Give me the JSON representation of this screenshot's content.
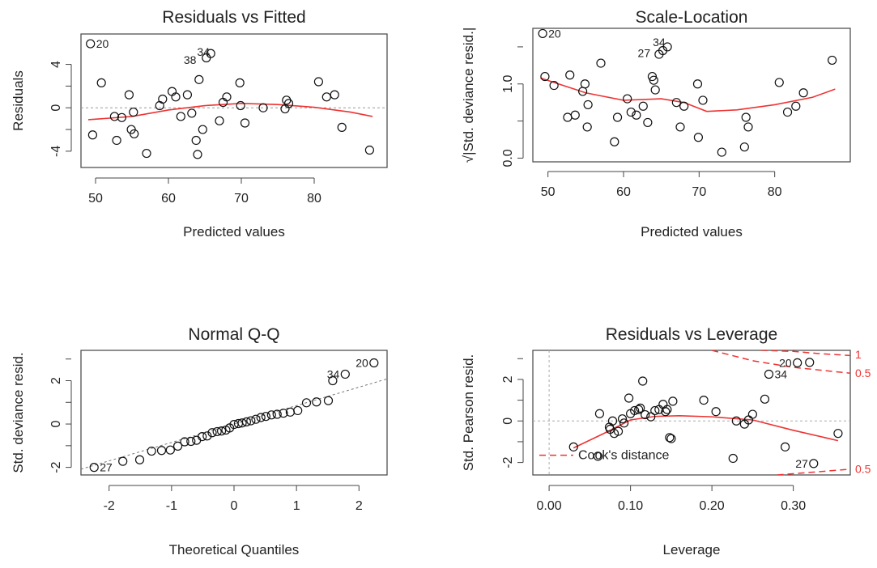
{
  "chart_data": [
    {
      "id": "rvf",
      "type": "scatter",
      "title": "Residuals vs Fitted",
      "xlabel": "Predicted values",
      "ylabel": "Residuals",
      "xlim": [
        48,
        90
      ],
      "ylim": [
        -5.5,
        6.8
      ],
      "xticks": [
        50,
        60,
        70,
        80
      ],
      "yticks": [
        -4,
        0,
        4
      ],
      "points": [
        [
          49.3,
          5.9
        ],
        [
          49.6,
          -2.5
        ],
        [
          50.8,
          2.3
        ],
        [
          52.6,
          -0.8
        ],
        [
          52.9,
          -3.0
        ],
        [
          53.6,
          -0.9
        ],
        [
          54.6,
          1.2
        ],
        [
          54.9,
          -2.0
        ],
        [
          55.2,
          -0.4
        ],
        [
          55.3,
          -2.4
        ],
        [
          57.0,
          -4.2
        ],
        [
          58.8,
          0.2
        ],
        [
          59.2,
          0.8
        ],
        [
          60.5,
          1.5
        ],
        [
          61.0,
          1.0
        ],
        [
          61.7,
          -0.8
        ],
        [
          62.6,
          1.2
        ],
        [
          63.2,
          -0.5
        ],
        [
          63.8,
          -3.0
        ],
        [
          64.0,
          -4.3
        ],
        [
          64.2,
          2.6
        ],
        [
          64.7,
          -2.0
        ],
        [
          65.2,
          4.6
        ],
        [
          65.8,
          5.0
        ],
        [
          67.0,
          -1.2
        ],
        [
          67.5,
          0.5
        ],
        [
          68.0,
          1.0
        ],
        [
          69.8,
          2.3
        ],
        [
          69.9,
          0.2
        ],
        [
          70.5,
          -1.4
        ],
        [
          73.0,
          0.0
        ],
        [
          76.0,
          -0.1
        ],
        [
          76.2,
          0.7
        ],
        [
          76.5,
          0.4
        ],
        [
          80.6,
          2.4
        ],
        [
          81.7,
          1.0
        ],
        [
          82.8,
          1.2
        ],
        [
          83.8,
          -1.8
        ],
        [
          87.6,
          -3.9
        ]
      ],
      "labeled": [
        {
          "x": 49.3,
          "y": 5.9,
          "text": "20",
          "side": "right"
        },
        {
          "x": 64.8,
          "y": 4.7,
          "text": "34",
          "side": "above"
        },
        {
          "x": 64.6,
          "y": 4.4,
          "text": "38",
          "side": "left"
        }
      ],
      "ref_line": {
        "y": 0
      },
      "smoother": [
        [
          49,
          -1.1
        ],
        [
          55,
          -0.8
        ],
        [
          60,
          -0.2
        ],
        [
          65,
          0.2
        ],
        [
          70,
          0.4
        ],
        [
          75,
          0.3
        ],
        [
          80,
          0.05
        ],
        [
          85,
          -0.4
        ],
        [
          88,
          -0.8
        ]
      ]
    },
    {
      "id": "sl",
      "type": "scatter",
      "title": "Scale-Location",
      "xlabel": "Predicted values",
      "ylabel": "√|Std. deviance resid.|",
      "xlim": [
        48,
        90
      ],
      "ylim": [
        -0.05,
        1.75
      ],
      "xticks": [
        50,
        60,
        70,
        80
      ],
      "yticks": [
        "0.0",
        "1.0"
      ],
      "points": [
        [
          49.3,
          1.68
        ],
        [
          49.6,
          1.1
        ],
        [
          50.8,
          0.98
        ],
        [
          52.9,
          1.12
        ],
        [
          53.6,
          0.58
        ],
        [
          52.6,
          0.55
        ],
        [
          54.6,
          0.9
        ],
        [
          54.9,
          1.0
        ],
        [
          55.2,
          0.42
        ],
        [
          55.3,
          0.72
        ],
        [
          57.0,
          1.28
        ],
        [
          58.8,
          0.22
        ],
        [
          59.2,
          0.55
        ],
        [
          60.5,
          0.8
        ],
        [
          61.0,
          0.62
        ],
        [
          61.7,
          0.58
        ],
        [
          62.6,
          0.7
        ],
        [
          63.2,
          0.48
        ],
        [
          63.8,
          1.1
        ],
        [
          64.0,
          1.05
        ],
        [
          64.2,
          0.92
        ],
        [
          64.7,
          1.4
        ],
        [
          65.2,
          1.45
        ],
        [
          65.8,
          1.5
        ],
        [
          67.0,
          0.75
        ],
        [
          67.5,
          0.42
        ],
        [
          68.0,
          0.7
        ],
        [
          69.8,
          1.0
        ],
        [
          69.9,
          0.28
        ],
        [
          70.5,
          0.78
        ],
        [
          73.0,
          0.08
        ],
        [
          76.0,
          0.15
        ],
        [
          76.2,
          0.55
        ],
        [
          76.5,
          0.42
        ],
        [
          80.6,
          1.02
        ],
        [
          81.7,
          0.62
        ],
        [
          82.8,
          0.7
        ],
        [
          83.8,
          0.88
        ],
        [
          87.6,
          1.32
        ]
      ],
      "labeled": [
        {
          "x": 49.3,
          "y": 1.68,
          "text": "20",
          "side": "right"
        },
        {
          "x": 64.7,
          "y": 1.5,
          "text": "34",
          "side": "above"
        },
        {
          "x": 64.3,
          "y": 1.42,
          "text": "27",
          "side": "left"
        }
      ],
      "smoother": [
        [
          49,
          1.08
        ],
        [
          55,
          0.88
        ],
        [
          60,
          0.78
        ],
        [
          65,
          0.8
        ],
        [
          68,
          0.75
        ],
        [
          71,
          0.63
        ],
        [
          75,
          0.65
        ],
        [
          80,
          0.72
        ],
        [
          85,
          0.82
        ],
        [
          88,
          0.93
        ]
      ]
    },
    {
      "id": "qq",
      "type": "scatter",
      "title": "Normal Q-Q",
      "xlabel": "Theoretical Quantiles",
      "ylabel": "Std. deviance resid.",
      "xlim": [
        -2.45,
        2.45
      ],
      "ylim": [
        -2.35,
        3.4
      ],
      "xticks": [
        -2,
        -1,
        0,
        1,
        2
      ],
      "yticks": [
        -2,
        0,
        2
      ],
      "points": [
        [
          -2.24,
          -2.0
        ],
        [
          -1.78,
          -1.72
        ],
        [
          -1.51,
          -1.65
        ],
        [
          -1.32,
          -1.25
        ],
        [
          -1.16,
          -1.22
        ],
        [
          -1.02,
          -1.2
        ],
        [
          -0.9,
          -1.02
        ],
        [
          -0.79,
          -0.82
        ],
        [
          -0.69,
          -0.8
        ],
        [
          -0.6,
          -0.75
        ],
        [
          -0.51,
          -0.58
        ],
        [
          -0.43,
          -0.55
        ],
        [
          -0.35,
          -0.4
        ],
        [
          -0.27,
          -0.35
        ],
        [
          -0.2,
          -0.32
        ],
        [
          -0.13,
          -0.28
        ],
        [
          -0.07,
          -0.18
        ],
        [
          0.0,
          -0.02
        ],
        [
          0.07,
          0.02
        ],
        [
          0.13,
          0.05
        ],
        [
          0.2,
          0.1
        ],
        [
          0.27,
          0.15
        ],
        [
          0.35,
          0.22
        ],
        [
          0.43,
          0.3
        ],
        [
          0.51,
          0.35
        ],
        [
          0.6,
          0.42
        ],
        [
          0.69,
          0.45
        ],
        [
          0.79,
          0.5
        ],
        [
          0.9,
          0.55
        ],
        [
          1.02,
          0.62
        ],
        [
          1.16,
          0.98
        ],
        [
          1.32,
          1.02
        ],
        [
          1.51,
          1.08
        ],
        [
          1.58,
          2.0
        ],
        [
          1.78,
          2.3
        ],
        [
          2.24,
          2.82
        ]
      ],
      "labeled": [
        {
          "x": -2.24,
          "y": -2.0,
          "text": "27",
          "side": "right"
        },
        {
          "x": 1.78,
          "y": 2.3,
          "text": "34",
          "side": "left"
        },
        {
          "x": 2.24,
          "y": 2.82,
          "text": "20",
          "side": "left"
        }
      ],
      "ref_line": {
        "slope": 0.85,
        "intercept": 0.0
      }
    },
    {
      "id": "rvl",
      "type": "scatter",
      "title": "Residuals vs Leverage",
      "xlabel": "Leverage",
      "ylabel": "Std. Pearson resid.",
      "xlim": [
        -0.02,
        0.37
      ],
      "ylim": [
        -2.6,
        3.4
      ],
      "xticks": [
        "0.00",
        "0.10",
        "0.20",
        "0.30"
      ],
      "yticks": [
        -2,
        0,
        2
      ],
      "points": [
        [
          0.03,
          -1.25
        ],
        [
          0.06,
          -1.7
        ],
        [
          0.062,
          0.35
        ],
        [
          0.074,
          -0.3
        ],
        [
          0.075,
          -0.4
        ],
        [
          0.078,
          0.0
        ],
        [
          0.08,
          -0.6
        ],
        [
          0.085,
          -0.5
        ],
        [
          0.09,
          0.1
        ],
        [
          0.092,
          -0.1
        ],
        [
          0.098,
          1.1
        ],
        [
          0.1,
          0.35
        ],
        [
          0.105,
          0.5
        ],
        [
          0.11,
          0.55
        ],
        [
          0.112,
          0.62
        ],
        [
          0.115,
          1.92
        ],
        [
          0.118,
          0.3
        ],
        [
          0.125,
          0.2
        ],
        [
          0.13,
          0.5
        ],
        [
          0.135,
          0.55
        ],
        [
          0.14,
          0.8
        ],
        [
          0.143,
          0.45
        ],
        [
          0.145,
          0.55
        ],
        [
          0.148,
          -0.8
        ],
        [
          0.15,
          -0.85
        ],
        [
          0.152,
          0.95
        ],
        [
          0.19,
          1.0
        ],
        [
          0.205,
          0.45
        ],
        [
          0.226,
          -1.8
        ],
        [
          0.23,
          0.0
        ],
        [
          0.24,
          -0.15
        ],
        [
          0.245,
          0.05
        ],
        [
          0.25,
          0.32
        ],
        [
          0.265,
          1.05
        ],
        [
          0.27,
          2.25
        ],
        [
          0.29,
          -1.25
        ],
        [
          0.305,
          2.8
        ],
        [
          0.32,
          2.82
        ],
        [
          0.325,
          -2.05
        ],
        [
          0.355,
          -0.6
        ]
      ],
      "labeled": [
        {
          "x": 0.27,
          "y": 2.25,
          "text": "34",
          "side": "right"
        },
        {
          "x": 0.305,
          "y": 2.8,
          "text": "20",
          "side": "left"
        },
        {
          "x": 0.325,
          "y": -2.05,
          "text": "27",
          "side": "left"
        }
      ],
      "legend": {
        "text": "Cook's distance",
        "placement": "bottom-left"
      },
      "cooks_labels": [
        {
          "text": "1",
          "y": 3.2
        },
        {
          "text": "0.5",
          "y": 2.3
        },
        {
          "text": "0.5",
          "y": -2.3
        }
      ],
      "cooks_curves": [
        {
          "level": 1,
          "points": [
            [
              0.26,
              3.4
            ],
            [
              0.3,
              3.35
            ],
            [
              0.33,
              3.25
            ],
            [
              0.37,
              3.15
            ]
          ]
        },
        {
          "level": 0.5,
          "points": [
            [
              0.2,
              3.4
            ],
            [
              0.25,
              2.9
            ],
            [
              0.3,
              2.58
            ],
            [
              0.37,
              2.3
            ]
          ]
        },
        {
          "level": 0.5,
          "points": [
            [
              0.28,
              -2.6
            ],
            [
              0.32,
              -2.48
            ],
            [
              0.37,
              -2.32
            ]
          ]
        }
      ],
      "hline": 0,
      "vline": 0,
      "smoother": [
        [
          0.03,
          -1.3
        ],
        [
          0.07,
          -0.55
        ],
        [
          0.1,
          0.05
        ],
        [
          0.13,
          0.22
        ],
        [
          0.16,
          0.25
        ],
        [
          0.2,
          0.2
        ],
        [
          0.25,
          0.05
        ],
        [
          0.3,
          -0.45
        ],
        [
          0.355,
          -0.95
        ]
      ]
    }
  ]
}
